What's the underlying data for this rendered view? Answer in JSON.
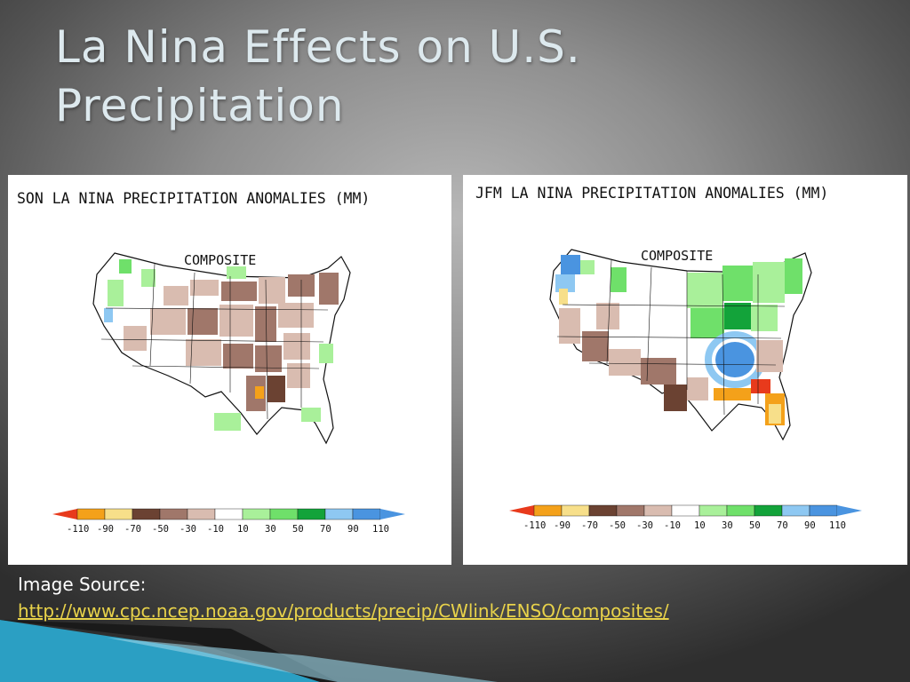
{
  "slide": {
    "title_line1": "La Nina Effects on U.S.",
    "title_line2": "Precipitation"
  },
  "maps": [
    {
      "title": "SON LA NINA PRECIPITATION ANOMALIES (MM)",
      "subtitle": "COMPOSITE",
      "scale_ticks": [
        "-110",
        "-90",
        "-70",
        "-50",
        "-30",
        "-10",
        "10",
        "30",
        "50",
        "70",
        "90",
        "110"
      ]
    },
    {
      "title": "JFM LA NINA PRECIPITATION ANOMALIES (MM)",
      "subtitle": "COMPOSITE",
      "scale_ticks": [
        "-110",
        "-90",
        "-70",
        "-50",
        "-30",
        "-10",
        "10",
        "30",
        "50",
        "70",
        "90",
        "110"
      ]
    }
  ],
  "legend_colors": {
    "very_dry": "#e83a1c",
    "dry_orange": "#f4a11a",
    "dry_yellow": "#f7df8a",
    "brown_dark": "#6b4232",
    "brown_mid": "#a0776a",
    "brown_light": "#d9bcb0",
    "white": "#ffffff",
    "green_light": "#a9f09a",
    "green_mid": "#6fe06a",
    "green_dark": "#13a33a",
    "blue_light": "#8ec8f2",
    "blue_mid": "#4a94e0"
  },
  "source": {
    "label": "Image Source:",
    "url": "http://www.cpc.ncep.noaa.gov/products/precip/CWlink/ENSO/composites/"
  }
}
